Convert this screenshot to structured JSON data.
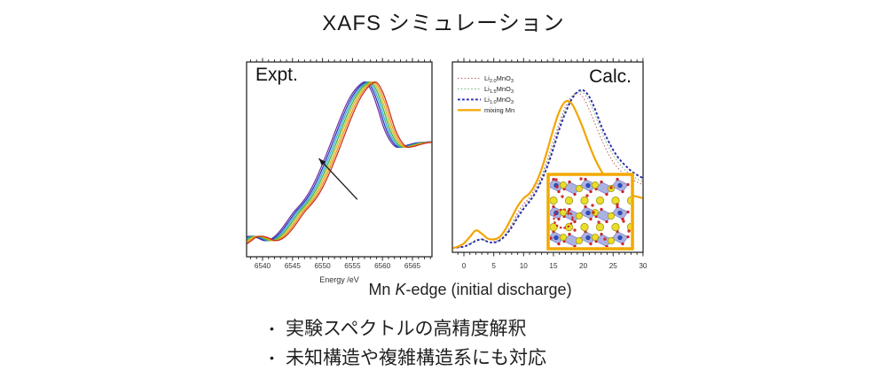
{
  "slide_title": "XAFS シミュレーション",
  "figure_caption": {
    "prefix": "Mn ",
    "italic": "K",
    "suffix": "-edge (initial discharge)"
  },
  "bullets": [
    {
      "marker": "•",
      "text": "実験スペクトルの高精度解釈"
    },
    {
      "marker": "•",
      "text": "未知構造や複雑構造系にも対応"
    }
  ],
  "chart_data": [
    {
      "id": "expt",
      "type": "line",
      "title_label": "Expt.",
      "xlabel": "Energy /eV",
      "ylabel": "",
      "xlim": [
        6537.3,
        6568.3
      ],
      "ylim": [
        0,
        1.12
      ],
      "grid": false,
      "x_ticks": {
        "values": [
          6540,
          6545,
          6550,
          6555,
          6560,
          6565
        ],
        "labels": [
          "6540",
          "6545",
          "6550",
          "6555",
          "6560",
          "6565"
        ]
      },
      "x_minor_step": 1,
      "base_x": [
        6537,
        6538,
        6539,
        6540,
        6541,
        6542,
        6543,
        6544,
        6545,
        6546,
        6547,
        6548,
        6549,
        6550,
        6551,
        6552,
        6553,
        6554,
        6555,
        6556,
        6557,
        6558,
        6559,
        6560,
        6561,
        6562,
        6563,
        6564,
        6565,
        6566,
        6567,
        6568,
        6570
      ],
      "base_y": [
        0.025,
        0.05,
        0.075,
        0.08,
        0.07,
        0.055,
        0.06,
        0.085,
        0.125,
        0.175,
        0.225,
        0.265,
        0.31,
        0.37,
        0.445,
        0.53,
        0.62,
        0.715,
        0.805,
        0.885,
        0.945,
        0.985,
        1.0,
        0.945,
        0.845,
        0.73,
        0.655,
        0.615,
        0.615,
        0.625,
        0.635,
        0.64,
        0.645
      ],
      "series": [
        {
          "name": "curve-purple",
          "color": "#7030A0",
          "shift": -1.8
        },
        {
          "name": "curve-blue",
          "color": "#2233BB",
          "shift": -1.5
        },
        {
          "name": "curve-cyan",
          "color": "#2FA8D5",
          "shift": -1.2
        },
        {
          "name": "curve-green",
          "color": "#3FAE3F",
          "shift": -0.9
        },
        {
          "name": "curve-yellow",
          "color": "#C9BE1E",
          "shift": -0.6
        },
        {
          "name": "curve-orange",
          "color": "#EF8C1A",
          "shift": -0.3
        },
        {
          "name": "curve-red",
          "color": "#C62F1F",
          "shift": 0
        }
      ],
      "annotation_arrow": {
        "x1": 6555.8,
        "y1": 0.3,
        "x2": 6549.4,
        "y2": 0.545,
        "color": "#1a1a1a"
      }
    },
    {
      "id": "calc",
      "type": "line",
      "title_label": "Calc.",
      "xlabel": "",
      "ylabel": "",
      "xlim": [
        -1.9,
        30
      ],
      "ylim": [
        0,
        1.18
      ],
      "grid": false,
      "legend_position": "top-left",
      "x_ticks": {
        "values": [
          0,
          5,
          10,
          15,
          20,
          25,
          30
        ],
        "labels": [
          "0",
          "5",
          "10",
          "15",
          "20",
          "25",
          "30"
        ]
      },
      "x_minor_step": 1,
      "x": [
        -2,
        -1,
        0,
        1,
        2,
        3,
        4,
        5,
        6,
        7,
        8,
        9,
        10,
        11,
        12,
        13,
        14,
        15,
        16,
        17,
        18,
        19,
        20,
        21,
        22,
        23,
        24,
        25,
        26,
        27,
        28,
        29,
        30
      ],
      "series": [
        {
          "label_parts": [
            {
              "t": "Li"
            },
            {
              "t": "2.0",
              "sub": true
            },
            {
              "t": "MnO"
            },
            {
              "t": "3",
              "sub": true
            }
          ],
          "color": "#C87070",
          "style": "dotted",
          "width": 1.1,
          "values": [
            0.02,
            0.025,
            0.03,
            0.05,
            0.07,
            0.075,
            0.06,
            0.06,
            0.075,
            0.11,
            0.17,
            0.24,
            0.295,
            0.335,
            0.395,
            0.47,
            0.57,
            0.69,
            0.8,
            0.9,
            0.96,
            0.985,
            0.955,
            0.88,
            0.79,
            0.7,
            0.62,
            0.555,
            0.51,
            0.475,
            0.45,
            0.43,
            0.415
          ]
        },
        {
          "label_parts": [
            {
              "t": "Li"
            },
            {
              "t": "1.5",
              "sub": true
            },
            {
              "t": "MnO"
            },
            {
              "t": "3",
              "sub": true
            }
          ],
          "color": "#7CB87C",
          "style": "dotted",
          "width": 1.1,
          "values": [
            0.02,
            0.025,
            0.03,
            0.05,
            0.07,
            0.075,
            0.06,
            0.058,
            0.072,
            0.105,
            0.16,
            0.225,
            0.28,
            0.325,
            0.38,
            0.455,
            0.55,
            0.665,
            0.78,
            0.88,
            0.95,
            0.985,
            0.985,
            0.93,
            0.845,
            0.75,
            0.665,
            0.6,
            0.545,
            0.505,
            0.475,
            0.45,
            0.435
          ]
        },
        {
          "label_parts": [
            {
              "t": "Li"
            },
            {
              "t": "1.0",
              "sub": true
            },
            {
              "t": "MnO"
            },
            {
              "t": "3",
              "sub": true
            }
          ],
          "color": "#2828B0",
          "style": "dotted-bold",
          "width": 1.9,
          "values": [
            0.02,
            0.025,
            0.03,
            0.045,
            0.065,
            0.075,
            0.06,
            0.055,
            0.068,
            0.1,
            0.15,
            0.21,
            0.265,
            0.31,
            0.365,
            0.44,
            0.53,
            0.64,
            0.76,
            0.86,
            0.94,
            0.99,
            1.0,
            0.96,
            0.88,
            0.78,
            0.7,
            0.63,
            0.575,
            0.535,
            0.5,
            0.475,
            0.455
          ]
        },
        {
          "label_parts": [
            {
              "t": "mixing Mn"
            }
          ],
          "color": "#F2A500",
          "style": "solid",
          "width": 2.2,
          "values": [
            0.02,
            0.03,
            0.05,
            0.09,
            0.13,
            0.11,
            0.08,
            0.075,
            0.09,
            0.14,
            0.21,
            0.28,
            0.33,
            0.36,
            0.42,
            0.51,
            0.63,
            0.76,
            0.87,
            0.93,
            0.92,
            0.85,
            0.76,
            0.66,
            0.57,
            0.5,
            0.445,
            0.41,
            0.385,
            0.365,
            0.35,
            0.34,
            0.33
          ]
        }
      ]
    }
  ],
  "inset": {
    "type": "crystal-structure-image",
    "border_color": "#F2A900",
    "li_color": "#E9DF2B",
    "o_color": "#CC2020",
    "mn_color": "#2A50C8",
    "octahedra_color": "#8A93D6"
  },
  "axis_color": "#2b2b2b"
}
